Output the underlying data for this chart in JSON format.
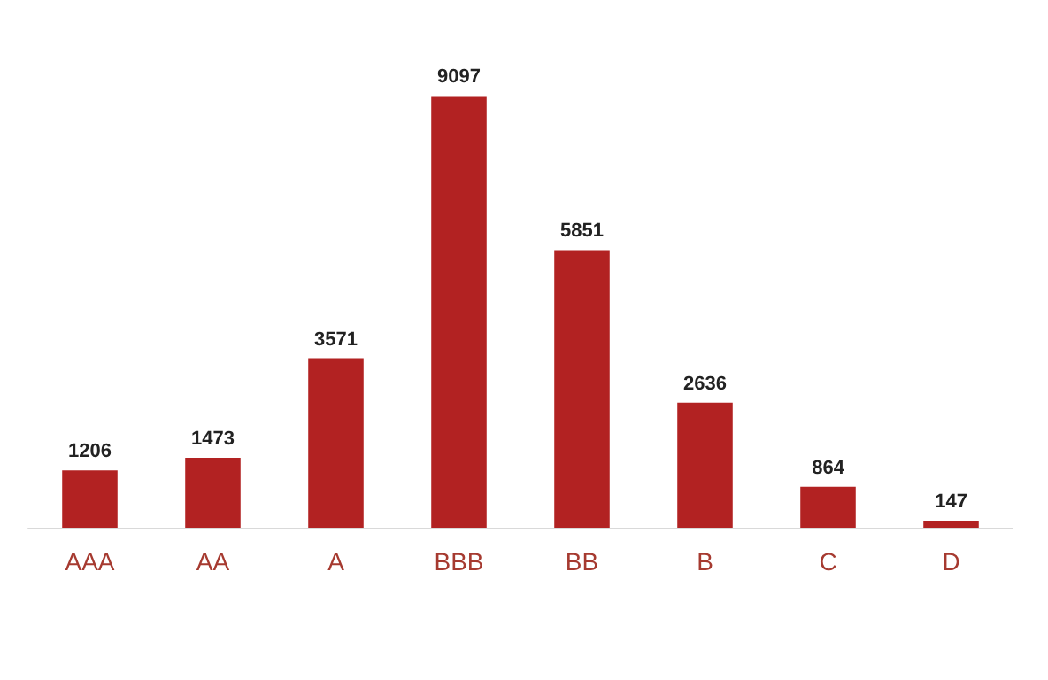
{
  "chart_data": {
    "type": "bar",
    "categories": [
      "AAA",
      "AA",
      "A",
      "BBB",
      "BB",
      "B",
      "C",
      "D"
    ],
    "values": [
      1206,
      1473,
      3571,
      9097,
      5851,
      2636,
      864,
      147
    ],
    "color": "#b22222",
    "data_labels": true
  }
}
